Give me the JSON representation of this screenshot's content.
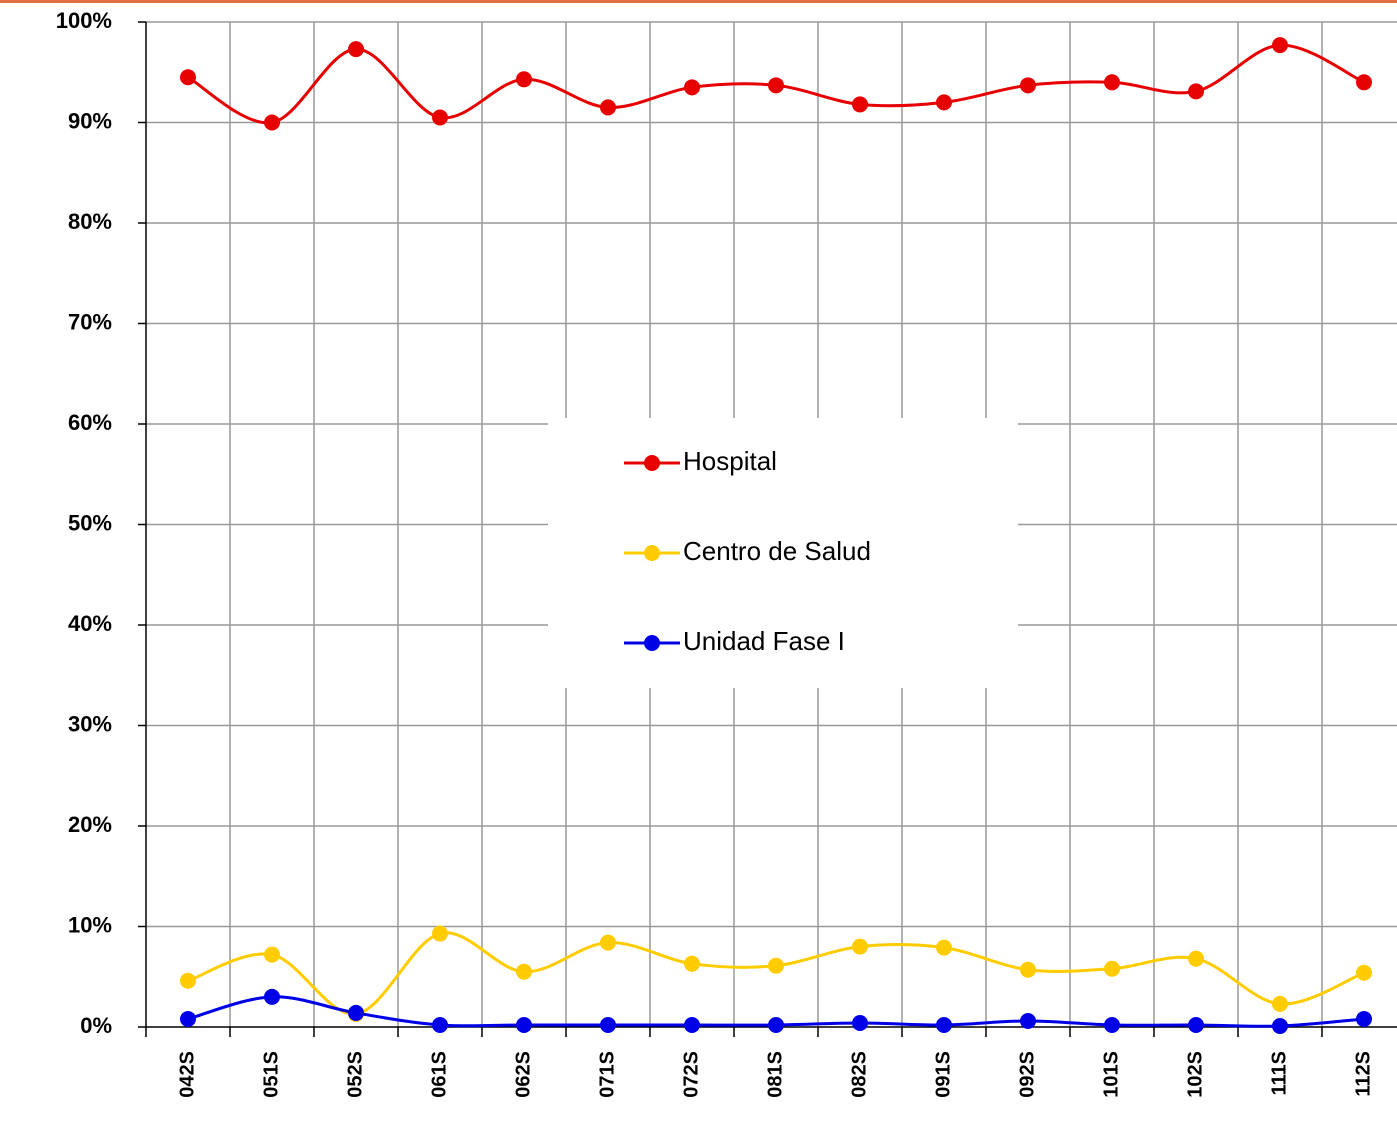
{
  "chart_data": {
    "type": "line",
    "categories": [
      "042S",
      "051S",
      "052S",
      "061S",
      "062S",
      "071S",
      "072S",
      "081S",
      "082S",
      "091S",
      "092S",
      "101S",
      "102S",
      "111S",
      "112S"
    ],
    "series": [
      {
        "name": "Hospital",
        "color": "#e60000",
        "values": [
          94.5,
          90,
          97.3,
          90.5,
          94.3,
          91.5,
          93.5,
          93.7,
          91.8,
          92,
          93.7,
          94,
          93.1,
          97.7,
          94
        ]
      },
      {
        "name": "Centro de Salud",
        "color": "#ffcc00",
        "values": [
          4.6,
          7.2,
          1.3,
          9.3,
          5.5,
          8.4,
          6.3,
          6.1,
          8,
          7.9,
          5.7,
          5.8,
          6.8,
          2.3,
          5.4
        ]
      },
      {
        "name": "Unidad Fase  I",
        "color": "#0000e6",
        "values": [
          0.8,
          3,
          1.4,
          0.2,
          0.2,
          0.2,
          0.2,
          0.2,
          0.4,
          0.2,
          0.6,
          0.2,
          0.2,
          0.1,
          0.8
        ]
      }
    ],
    "ylim": [
      0,
      100
    ],
    "yticks": [
      {
        "value": 0,
        "label": "0%"
      },
      {
        "value": 10,
        "label": "10%"
      },
      {
        "value": 20,
        "label": "20%"
      },
      {
        "value": 30,
        "label": "30%"
      },
      {
        "value": 40,
        "label": "40%"
      },
      {
        "value": 50,
        "label": "50%"
      },
      {
        "value": 60,
        "label": "60%"
      },
      {
        "value": 70,
        "label": "70%"
      },
      {
        "value": 80,
        "label": "80%"
      },
      {
        "value": 90,
        "label": "90%"
      },
      {
        "value": 100,
        "label": "100%"
      }
    ],
    "grid": true
  }
}
